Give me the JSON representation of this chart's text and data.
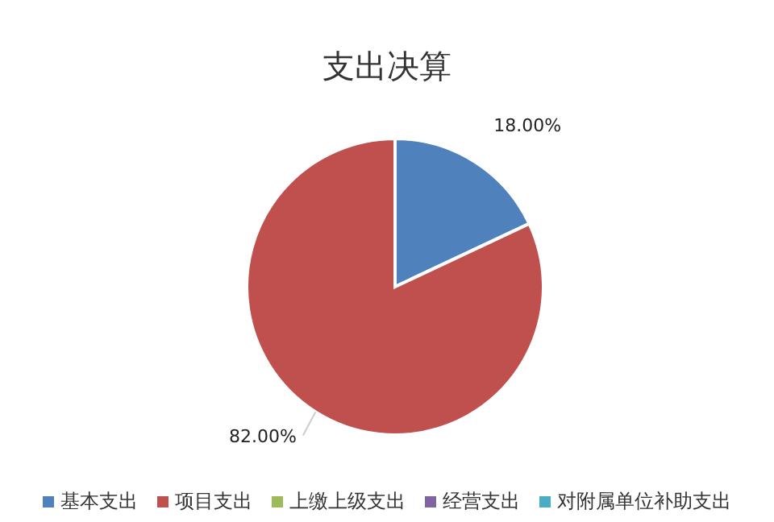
{
  "chart_data": {
    "type": "pie",
    "title": "支出决算",
    "categories": [
      "基本支出",
      "项目支出",
      "上缴上级支出",
      "经营支出",
      "对附属单位补助支出"
    ],
    "values": [
      18,
      82,
      0,
      0,
      0
    ],
    "colors": [
      "#4f81bd",
      "#c0504d",
      "#9bbb59",
      "#8064a2",
      "#4bacc6"
    ],
    "value_labels": [
      "18.00%",
      "82.00%",
      null,
      null,
      null
    ],
    "legend": "bottom"
  }
}
